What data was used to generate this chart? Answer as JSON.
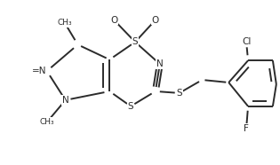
{
  "bg_color": "#ffffff",
  "line_color": "#2b2b2b",
  "lw": 1.4,
  "fs": 7.5,
  "figsize": [
    3.15,
    1.86
  ],
  "dpi": 100,
  "xlim": [
    0,
    3.15
  ],
  "ylim": [
    0,
    1.86
  ]
}
